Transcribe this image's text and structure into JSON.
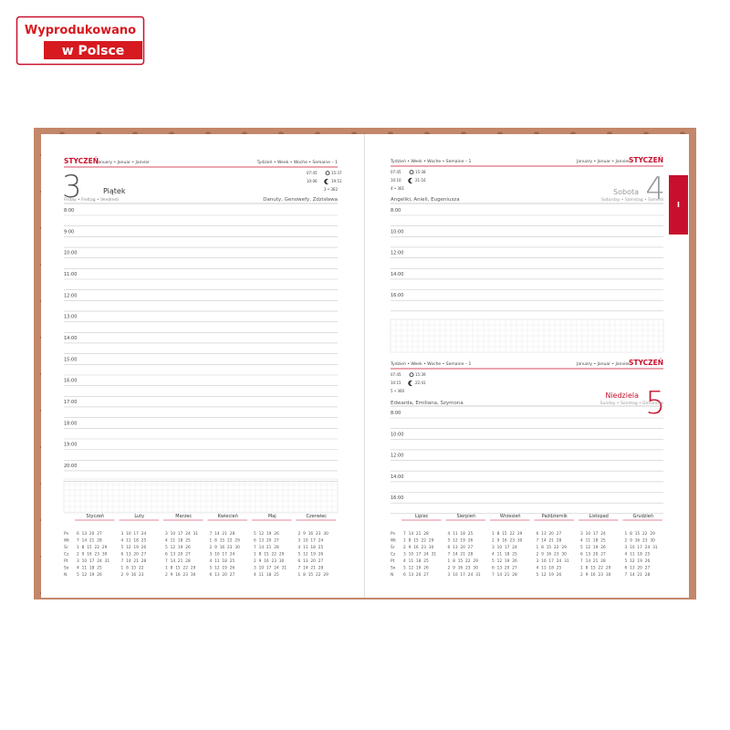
{
  "badge": {
    "line1": "Wyprodukowano",
    "line2": "w Polsce"
  },
  "tab": "I",
  "left_page": {
    "month": "STYCZEŃ",
    "month_translations": "January • Januar • Janvier",
    "week": "Tydzień • Week • Woche • Semaine – 1",
    "day_number": "3",
    "day_name": "Piątek",
    "day_translations": "Friday • Freitag • Vendredi",
    "sun": [
      "07:45",
      "15:37"
    ],
    "moon": [
      "10:06",
      "19:51"
    ],
    "day_count": "3 • 362",
    "name_days": "Danuty, Genowefy, Zdzisława",
    "hours": [
      "8:00",
      "9:00",
      "10:00",
      "11:00",
      "12:00",
      "13:00",
      "14:00",
      "15:00",
      "16:00",
      "17:00",
      "18:00",
      "19:00",
      "20:00"
    ]
  },
  "right_page": {
    "days": [
      {
        "week": "Tydzień • Week • Woche • Semaine – 1",
        "month_translations": "January • Januar • Janvier",
        "month": "STYCZEŃ",
        "sun": [
          "07:45",
          "15:38"
        ],
        "moon": [
          "10:10",
          "21:16"
        ],
        "day_count": "4 • 361",
        "day_number": "4",
        "day_name": "Sobota",
        "day_translations": "Saturday • Samstag • Samedi",
        "name_days": "Angeliki, Anieli, Eugeniusza",
        "hours": [
          "8:00",
          "10:00",
          "12:00",
          "14:00",
          "16:00"
        ]
      },
      {
        "week": "Tydzień • Week • Woche • Semaine – 1",
        "month_translations": "January • Januar • Janvier",
        "month": "STYCZEŃ",
        "sun": [
          "07:45",
          "15:39"
        ],
        "moon": [
          "10:15",
          "22:41"
        ],
        "day_count": "5 • 360",
        "day_number": "5",
        "day_name": "Niedziela",
        "day_translations": "Sunday • Sonntag • Dimanche",
        "name_days": "Edwarda, Emiliana, Szymona",
        "hours": [
          "8:00",
          "10:00",
          "12:00",
          "14:00",
          "16:00"
        ]
      }
    ]
  },
  "weekday_labels": [
    "Pn",
    "Wt",
    "Śr",
    "Cz",
    "Pt",
    "So",
    "N"
  ],
  "calendars": [
    {
      "month": "Styczeń",
      "rows": [
        "6 13 20 27",
        "7 14 21 28",
        "1 8 15 22 29",
        "2 9 16 23 30",
        "3 10 17 24 31",
        "4 11 18 25",
        "5 12 19 26"
      ]
    },
    {
      "month": "Luty",
      "rows": [
        "3 10 17 24",
        "4 11 18 25",
        "5 12 19 26",
        "6 13 20 27",
        "7 14 21 28",
        "1 8 15 22",
        "2 9 16 23"
      ]
    },
    {
      "month": "Marzec",
      "rows": [
        "3 10 17 24 31",
        "4 11 18 25",
        "5 12 19 26",
        "6 13 20 27",
        "7 14 21 28",
        "1 8 15 22 29",
        "2 9 16 23 30"
      ]
    },
    {
      "month": "Kwiecień",
      "rows": [
        "7 14 21 28",
        "1 8 15 22 29",
        "2 9 16 23 30",
        "3 10 17 24",
        "4 11 18 25",
        "5 12 19 26",
        "6 13 20 27"
      ]
    },
    {
      "month": "Maj",
      "rows": [
        "5 12 19 26",
        "6 13 20 27",
        "7 14 21 28",
        "1 8 15 22 29",
        "2 9 16 23 30",
        "3 10 17 24 31",
        "4 11 18 25"
      ]
    },
    {
      "month": "Czerwiec",
      "rows": [
        "2 9 16 23 30",
        "3 10 17 24",
        "4 11 18 25",
        "5 12 19 26",
        "6 13 20 27",
        "7 14 21 28",
        "1 8 15 22 29"
      ]
    },
    {
      "month": "Lipiec",
      "rows": [
        "7 14 21 28",
        "1 8 15 22 29",
        "2 9 16 23 30",
        "3 10 17 24 31",
        "4 11 18 25",
        "5 12 19 26",
        "6 13 20 27"
      ]
    },
    {
      "month": "Sierpień",
      "rows": [
        "4 11 18 25",
        "5 12 19 26",
        "6 13 20 27",
        "7 14 21 28",
        "1 8 15 22 29",
        "2 9 16 23 30",
        "3 10 17 24 31"
      ]
    },
    {
      "month": "Wrzesień",
      "rows": [
        "1 8 15 22 29",
        "2 9 16 23 30",
        "3 10 17 24",
        "4 11 18 25",
        "5 12 19 26",
        "6 13 20 27",
        "7 14 21 28"
      ]
    },
    {
      "month": "Październik",
      "rows": [
        "6 13 20 27",
        "7 14 21 28",
        "1 8 15 22 29",
        "2 9 16 23 30",
        "3 10 17 24 31",
        "4 11 18 25",
        "5 12 19 26"
      ]
    },
    {
      "month": "Listopad",
      "rows": [
        "3 10 17 24",
        "4 11 18 25",
        "5 12 19 26",
        "6 13 20 27",
        "7 14 21 28",
        "1 8 15 22 29",
        "2 9 16 23 30"
      ]
    },
    {
      "month": "Grudzień",
      "rows": [
        "1 8 15 22 29",
        "2 9 16 23 30",
        "3 10 17 24 31",
        "4 11 18 25",
        "5 12 19 26",
        "6 13 20 27",
        "7 14 21 28"
      ]
    }
  ]
}
